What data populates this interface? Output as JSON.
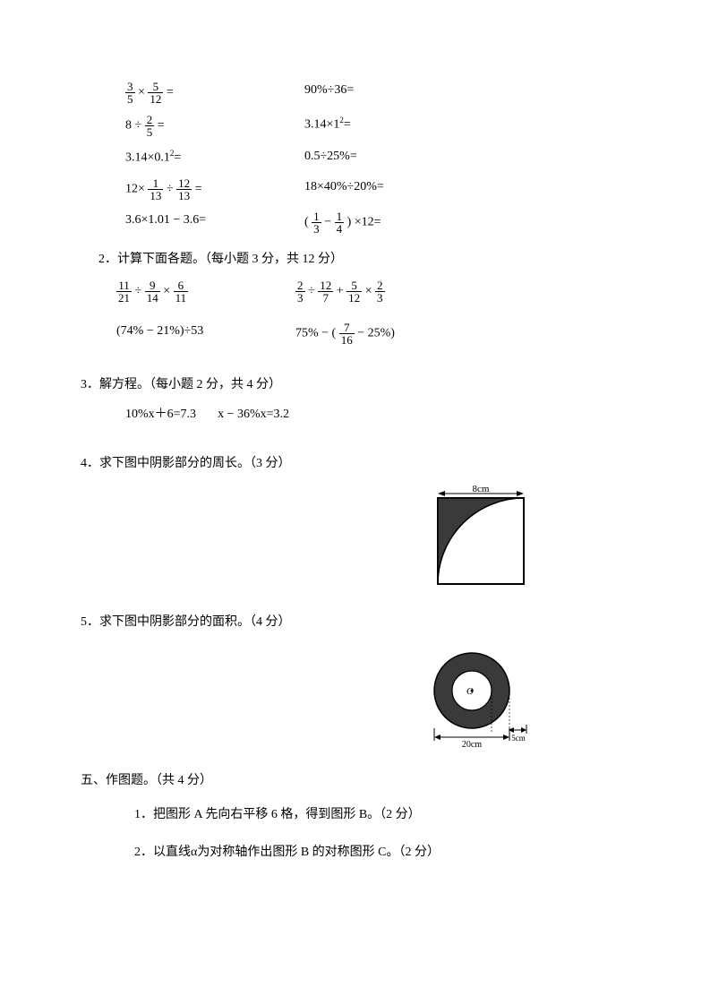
{
  "q1": {
    "rows": [
      {
        "l_parts": [
          "frac:3:5",
          " × ",
          "frac:5:12",
          " ="
        ],
        "r_parts": [
          "90%÷36="
        ]
      },
      {
        "l_parts": [
          "8 ÷ ",
          "frac:2:5",
          " ="
        ],
        "r_parts": [
          "3.14×1",
          "sup:2",
          "="
        ]
      },
      {
        "l_parts": [
          "3.14×0.1",
          "sup:2",
          "="
        ],
        "r_parts": [
          "0.5÷25%="
        ]
      },
      {
        "l_parts": [
          "12× ",
          "frac:1:13",
          " ÷ ",
          "frac:12:13",
          " ="
        ],
        "r_parts": [
          "18×40%÷20%="
        ]
      },
      {
        "l_parts": [
          "3.6×1.01 − 3.6="
        ],
        "r_parts": [
          "( ",
          "frac:1:3",
          " − ",
          "frac:1:4",
          " ) ×12="
        ]
      }
    ]
  },
  "q2": {
    "title": "2．计算下面各题。（每小题 3 分，共 12 分）",
    "rows": [
      {
        "l_parts": [
          "frac:11:21",
          " ÷ ",
          "frac:9:14",
          " × ",
          "frac:6:11"
        ],
        "r_parts": [
          "frac:2:3",
          " ÷ ",
          "frac:12:7",
          " + ",
          "frac:5:12",
          " × ",
          "frac:2:3"
        ]
      },
      {
        "l_parts": [
          "(74% − 21%)÷53"
        ],
        "r_parts": [
          "75% − ( ",
          "frac:7:16",
          " − 25%)"
        ]
      }
    ]
  },
  "q3": {
    "title": "3．解方程。（每小题 2 分，共 4 分）",
    "eq1": "10%x＋6=7.3",
    "eq2": "x − 36%x=3.2"
  },
  "q4": {
    "title": "4．求下图中阴影部分的周长。（3 分）",
    "label": "8cm",
    "stroke": "#000000",
    "fill": "#3a3a3a"
  },
  "q5": {
    "title": "5．求下图中阴影部分的面积。（4 分）",
    "center_label": "O",
    "outer_label": "20cm",
    "gap_label": "5cm",
    "stroke": "#000000",
    "ring_fill": "#3a3a3a"
  },
  "section5": {
    "title": "五、作图题。（共 4 分）",
    "item1": "1．把图形 A 先向右平移 6 格，得到图形 B。（2 分）",
    "item2": "2．以直线α为对称轴作出图形 B 的对称图形 C。（2 分）"
  }
}
